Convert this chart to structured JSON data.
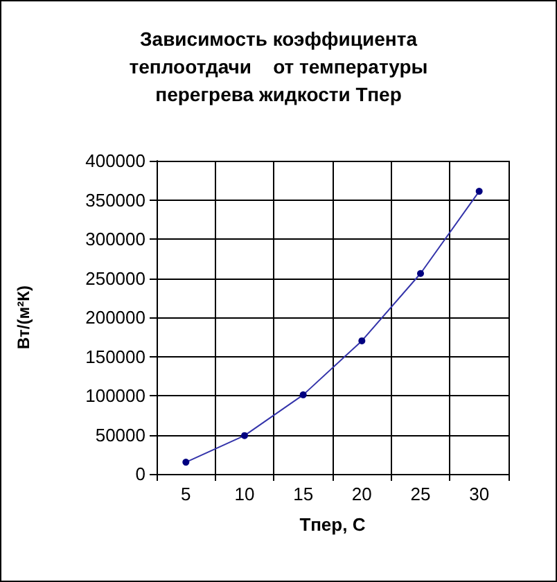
{
  "chart_data": {
    "type": "line",
    "title": "Зависимость коэффициента\nтеплоотдачи    от температуры\nперегрева жидкости Тпер",
    "xlabel": "Тпер, С",
    "ylabel": "Вт/(м²К)",
    "categories": [
      "5",
      "10",
      "15",
      "20",
      "25",
      "30"
    ],
    "series": [
      {
        "color": "#3333aa",
        "values": [
          15000,
          49000,
          101000,
          170000,
          256000,
          361000
        ]
      }
    ],
    "ylim": [
      0,
      400000
    ],
    "yticks": [
      0,
      50000,
      100000,
      150000,
      200000,
      250000,
      300000,
      350000,
      400000
    ],
    "grid": true,
    "marker": "circle",
    "line_style": "solid"
  }
}
